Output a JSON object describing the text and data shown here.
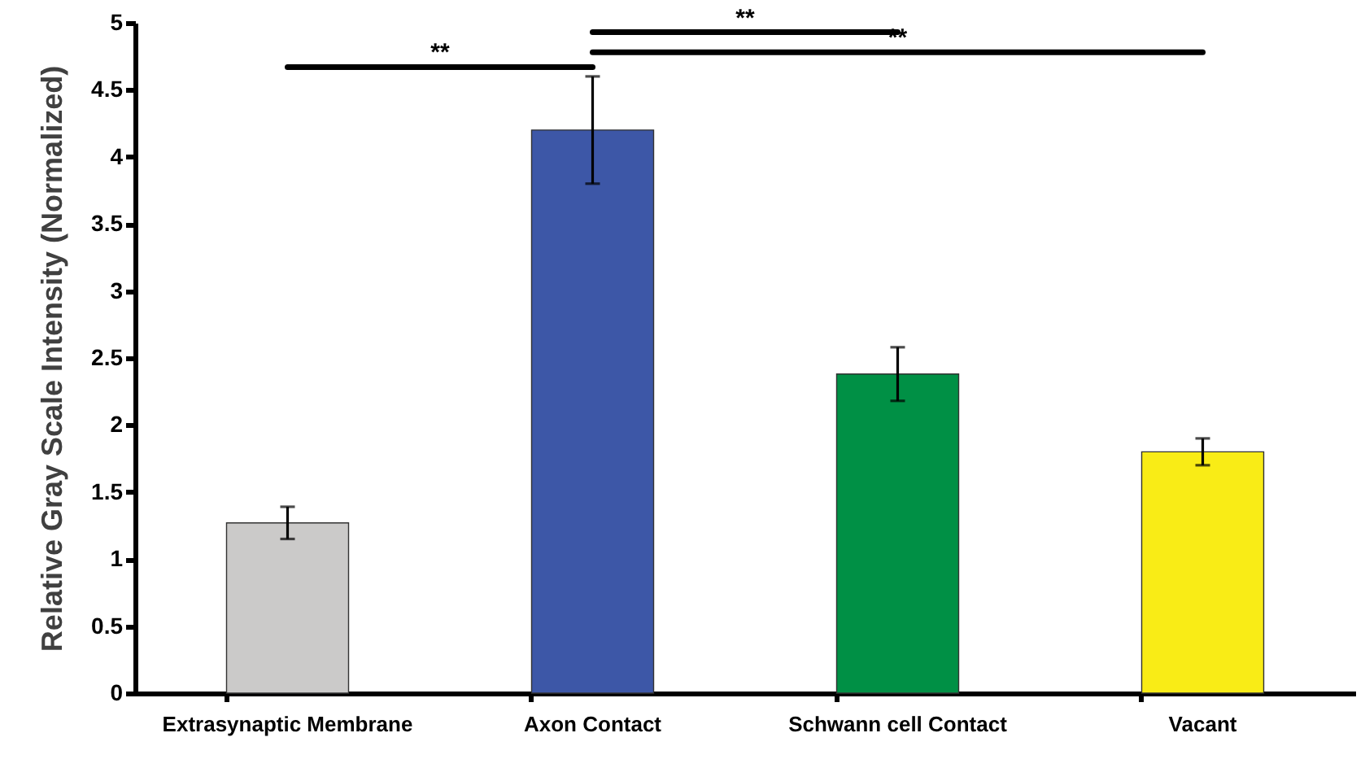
{
  "chart_data": {
    "type": "bar",
    "ylabel": "Relative Gray Scale Intensity (Normalized)",
    "categories": [
      "Extrasynaptic Membrane",
      "Axon Contact",
      "Schwann cell Contact",
      "Vacant"
    ],
    "values": [
      1.27,
      4.2,
      2.38,
      1.8
    ],
    "errors": [
      0.12,
      0.4,
      0.2,
      0.1
    ],
    "colors": [
      "#cbcac9",
      "#3d57a7",
      "#009045",
      "#f9ec16"
    ],
    "ylim": [
      0,
      5
    ],
    "yticks": [
      0,
      0.5,
      1,
      1.5,
      2,
      2.5,
      3,
      3.5,
      4,
      4.5,
      5
    ],
    "grid": false,
    "annotations": [
      "**",
      "**",
      "**"
    ]
  }
}
